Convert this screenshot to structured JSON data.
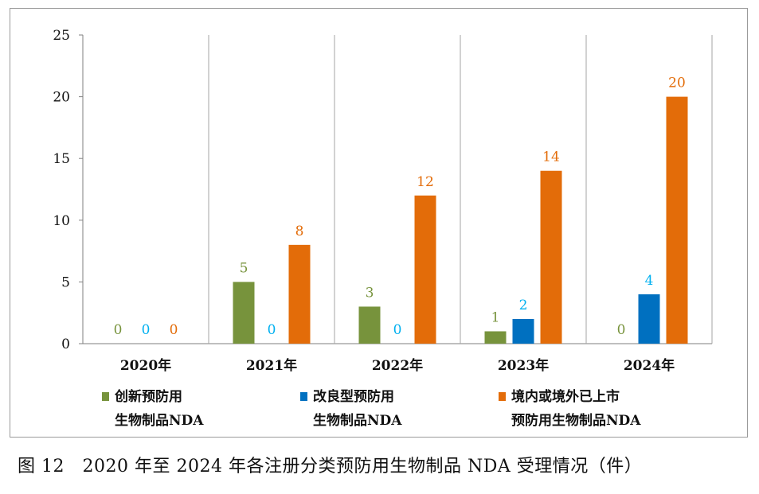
{
  "chart_data": {
    "type": "bar",
    "categories": [
      "2020年",
      "2021年",
      "2022年",
      "2023年",
      "2024年"
    ],
    "series": [
      {
        "name": "创新预防用生物制品NDA",
        "legend_lines": [
          "创新预防用",
          "生物制品NDA"
        ],
        "color": "#77933c",
        "values": [
          0,
          5,
          3,
          1,
          0
        ]
      },
      {
        "name": "改良型预防用生物制品NDA",
        "legend_lines": [
          "改良型预防用",
          "生物制品NDA"
        ],
        "color": "#0070c0",
        "label_color": "#00b0f0",
        "values": [
          0,
          0,
          0,
          2,
          4
        ]
      },
      {
        "name": "境内或境外已上市预防用生物制品NDA",
        "legend_lines": [
          "境内或境外已上市",
          "预防用生物制品NDA"
        ],
        "color": "#e36c09",
        "values": [
          0,
          8,
          12,
          14,
          20
        ]
      }
    ],
    "ylim": [
      0,
      25
    ],
    "yticks": [
      0,
      5,
      10,
      15,
      20,
      25
    ],
    "grid": "vertical category separators",
    "legend": "bottom"
  },
  "caption": "图 12　2020 年至 2024 年各注册分类预防用生物制品 NDA 受理情况（件）"
}
